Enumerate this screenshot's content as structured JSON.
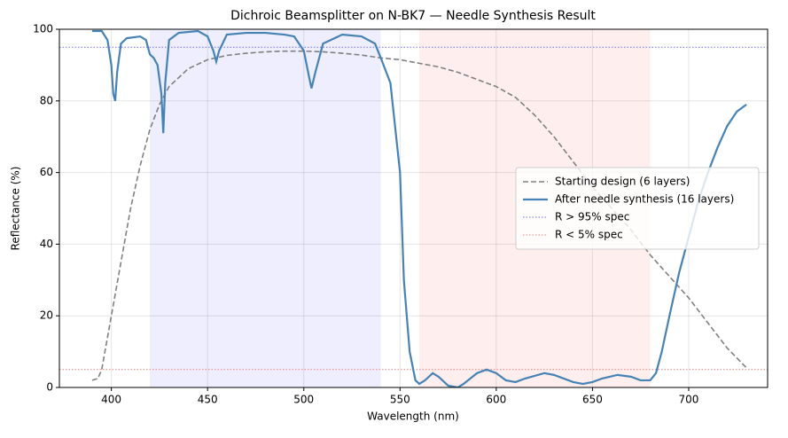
{
  "chart_data": {
    "type": "line",
    "title": "Dichroic Beamsplitter on N-BK7 — Needle Synthesis Result",
    "xlabel": "Wavelength (nm)",
    "ylabel": "Reflectance (%)",
    "xlim": [
      373,
      741
    ],
    "ylim": [
      0,
      100
    ],
    "xticks": [
      400,
      450,
      500,
      550,
      600,
      650,
      700
    ],
    "yticks": [
      0,
      20,
      40,
      60,
      80,
      100
    ],
    "grid": true,
    "legend": "center right",
    "bands": [
      {
        "range": [
          420,
          540
        ],
        "color": "#eeeeff"
      },
      {
        "range": [
          560,
          680
        ],
        "color": "#ffeeee"
      }
    ],
    "series": [
      {
        "name": "Starting design (6 layers)",
        "color": "#808080",
        "dash": true,
        "x": [
          390,
          393,
          395,
          400,
          405,
          410,
          415,
          420,
          425,
          430,
          440,
          450,
          460,
          470,
          480,
          490,
          500,
          510,
          520,
          530,
          540,
          550,
          560,
          570,
          580,
          590,
          600,
          610,
          620,
          630,
          640,
          650,
          660,
          670,
          680,
          690,
          700,
          710,
          720,
          730
        ],
        "values": [
          2,
          2.5,
          5,
          20,
          35,
          50,
          62,
          72,
          79,
          84,
          89,
          91.5,
          92.7,
          93.3,
          93.7,
          93.9,
          93.9,
          93.7,
          93.3,
          92.8,
          92,
          91.5,
          90.5,
          89.5,
          88,
          86,
          84,
          81,
          76,
          70,
          63,
          56,
          50,
          44,
          37,
          31,
          25,
          18,
          11,
          5.5
        ]
      },
      {
        "name": "After needle synthesis (16 layers)",
        "color": "#4682b4",
        "dash": false,
        "x": [
          390,
          395,
          398,
          400,
          401,
          402,
          403,
          405,
          408,
          415,
          418,
          420,
          422,
          424,
          426,
          427,
          428,
          430,
          435,
          445,
          450,
          453,
          454.5,
          456,
          460,
          470,
          480,
          490,
          495,
          500,
          503,
          504,
          506,
          510,
          520,
          530,
          537,
          540,
          545,
          550,
          552,
          555,
          558,
          560,
          563,
          567,
          570,
          575,
          580,
          583,
          590,
          595,
          600,
          605,
          610,
          615,
          625,
          630,
          640,
          645,
          650,
          655,
          663,
          670,
          675,
          680,
          683,
          686,
          690,
          695,
          700,
          705,
          710,
          715,
          720,
          725,
          730
        ],
        "values": [
          99.5,
          99.5,
          97,
          90,
          82,
          80,
          88,
          96,
          97.5,
          98,
          97,
          93,
          92,
          90,
          82,
          71,
          85,
          97,
          99,
          99.5,
          98,
          94,
          91,
          94,
          98.5,
          99,
          99,
          98.5,
          98,
          94,
          86,
          83.5,
          88,
          96,
          98.5,
          98,
          96,
          92,
          85,
          60,
          30,
          10,
          2,
          1,
          2,
          4,
          3,
          0.5,
          0,
          1,
          4,
          5,
          4,
          2,
          1.5,
          2.5,
          4,
          3.5,
          1.5,
          1,
          1.5,
          2.5,
          3.5,
          3,
          2,
          2,
          4,
          10,
          20,
          32,
          42,
          52,
          60,
          67,
          73,
          77,
          79
        ]
      }
    ],
    "hlines": [
      {
        "name": "R > 95% spec",
        "value": 95,
        "color": "#6b6bf0"
      },
      {
        "name": "R < 5% spec",
        "value": 5,
        "color": "#f07f7f"
      }
    ]
  }
}
